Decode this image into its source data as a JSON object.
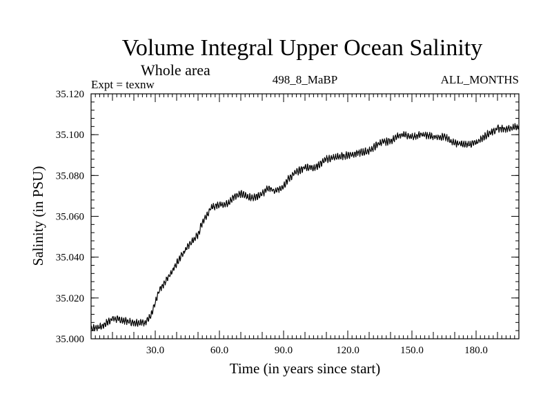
{
  "chart_data": {
    "type": "line",
    "title": "Volume Integral Upper Ocean Salinity",
    "subtitle": "Whole area",
    "expt_label": "Expt = texnw",
    "run_label": "498_8_MaBP",
    "months_label": "ALL_MONTHS",
    "xlabel": "Time (in years since start)",
    "ylabel": "Salinity (in PSU)",
    "xlim": [
      0,
      200
    ],
    "ylim": [
      35.0,
      35.12
    ],
    "x_ticks": [
      30,
      60,
      90,
      120,
      150,
      180
    ],
    "x_tick_labels": [
      "30.0",
      "60.0",
      "90.0",
      "120.0",
      "150.0",
      "180.0"
    ],
    "y_ticks": [
      35.0,
      35.02,
      35.04,
      35.06,
      35.08,
      35.1,
      35.12
    ],
    "y_tick_labels": [
      "35.000",
      "35.020",
      "35.040",
      "35.060",
      "35.080",
      "35.100",
      "35.120"
    ],
    "line_color": "#000000",
    "series": [
      {
        "name": "Salinity",
        "x": [
          0,
          5,
          10,
          15,
          20,
          25,
          28,
          32,
          36,
          40,
          45,
          50,
          52,
          56,
          60,
          64,
          67,
          70,
          75,
          80,
          83,
          86,
          90,
          92,
          95,
          100,
          105,
          110,
          115,
          120,
          125,
          130,
          135,
          140,
          145,
          150,
          155,
          160,
          165,
          170,
          175,
          180,
          185,
          190,
          195,
          200
        ],
        "y": [
          35.005,
          35.006,
          35.01,
          35.009,
          35.008,
          35.008,
          35.011,
          35.024,
          35.03,
          35.037,
          35.045,
          35.051,
          35.057,
          35.064,
          35.066,
          35.066,
          35.07,
          35.071,
          35.069,
          35.071,
          35.074,
          35.072,
          35.075,
          35.078,
          35.081,
          35.084,
          35.084,
          35.088,
          35.089,
          35.09,
          35.091,
          35.092,
          35.096,
          35.097,
          35.1,
          35.099,
          35.1,
          35.099,
          35.099,
          35.096,
          35.095,
          35.096,
          35.1,
          35.103,
          35.103,
          35.104
        ]
      }
    ]
  }
}
